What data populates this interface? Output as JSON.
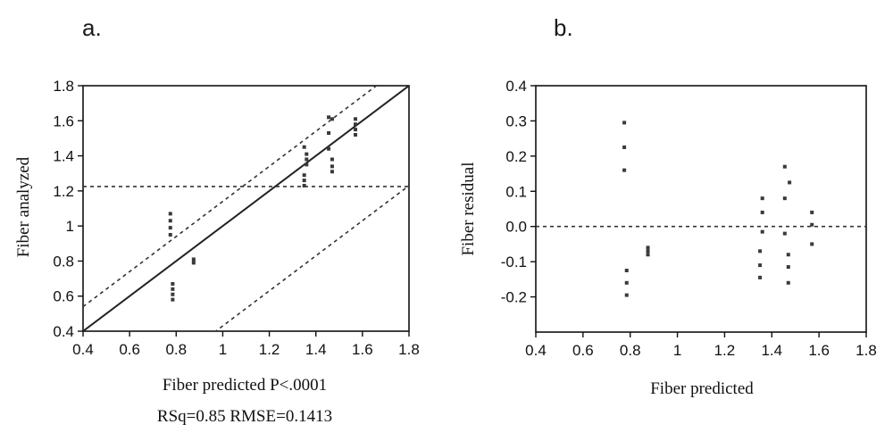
{
  "chart_data": [
    {
      "type": "scatter",
      "panel_label": "a.",
      "xlabel": "Fiber predicted P<.0001",
      "caption": "RSq=0.85 RMSE=0.1413",
      "ylabel": "Fiber analyzed",
      "xlim": [
        0.4,
        1.8
      ],
      "ylim": [
        0.4,
        1.8
      ],
      "xticks": [
        "0.4",
        "0.6",
        "0.8",
        "1",
        "1.2",
        "1.4",
        "1.6",
        "1.8"
      ],
      "yticks": [
        "0.4",
        "0.6",
        "0.8",
        "1",
        "1.2",
        "1.4",
        "1.6",
        "1.8"
      ],
      "grid": false,
      "fit_line": {
        "slope": 1,
        "intercept": 0
      },
      "confidence_lines": [
        {
          "slope": 1,
          "intercept": 0.14
        },
        {
          "slope": 1,
          "intercept": -0.57
        }
      ],
      "mean_line": {
        "y": 1.225
      },
      "series": [
        {
          "points": [
            [
              0.775,
              1.07
            ],
            [
              0.775,
              1.03
            ],
            [
              0.775,
              0.99
            ],
            [
              0.775,
              0.95
            ],
            [
              0.785,
              0.67
            ],
            [
              0.785,
              0.64
            ],
            [
              0.785,
              0.61
            ],
            [
              0.785,
              0.58
            ],
            [
              0.875,
              0.81
            ],
            [
              0.875,
              0.79
            ],
            [
              1.35,
              1.45
            ],
            [
              1.36,
              1.41
            ],
            [
              1.36,
              1.38
            ],
            [
              1.36,
              1.35
            ],
            [
              1.35,
              1.29
            ],
            [
              1.35,
              1.26
            ],
            [
              1.35,
              1.23
            ],
            [
              1.455,
              1.62
            ],
            [
              1.455,
              1.53
            ],
            [
              1.455,
              1.44
            ],
            [
              1.47,
              1.61
            ],
            [
              1.47,
              1.38
            ],
            [
              1.47,
              1.34
            ],
            [
              1.47,
              1.31
            ],
            [
              1.57,
              1.61
            ],
            [
              1.57,
              1.58
            ],
            [
              1.57,
              1.55
            ],
            [
              1.57,
              1.52
            ]
          ]
        }
      ]
    },
    {
      "type": "scatter",
      "panel_label": "b.",
      "xlabel": "Fiber predicted",
      "ylabel": "Fiber residual",
      "xlim": [
        0.4,
        1.8
      ],
      "ylim": [
        -0.3,
        0.4
      ],
      "xticks": [
        "0.4",
        "0.6",
        "0.8",
        "1",
        "1.2",
        "1.4",
        "1.6",
        "1.8"
      ],
      "yticks": [
        "-0.2",
        "-0.1",
        "0.0",
        "0.1",
        "0.2",
        "0.3",
        "0.4"
      ],
      "grid": false,
      "zero_line": {
        "y": 0.0
      },
      "series": [
        {
          "points": [
            [
              0.775,
              0.295
            ],
            [
              0.775,
              0.225
            ],
            [
              0.775,
              0.16
            ],
            [
              0.785,
              -0.125
            ],
            [
              0.785,
              -0.16
            ],
            [
              0.785,
              -0.195
            ],
            [
              0.875,
              -0.06
            ],
            [
              0.875,
              -0.07
            ],
            [
              0.875,
              -0.08
            ],
            [
              1.36,
              0.08
            ],
            [
              1.36,
              0.04
            ],
            [
              1.36,
              -0.015
            ],
            [
              1.35,
              -0.07
            ],
            [
              1.35,
              -0.11
            ],
            [
              1.35,
              -0.145
            ],
            [
              1.455,
              0.17
            ],
            [
              1.455,
              0.08
            ],
            [
              1.455,
              -0.02
            ],
            [
              1.475,
              0.125
            ],
            [
              1.47,
              -0.08
            ],
            [
              1.47,
              -0.115
            ],
            [
              1.47,
              -0.16
            ],
            [
              1.57,
              0.04
            ],
            [
              1.57,
              0.005
            ],
            [
              1.57,
              -0.05
            ]
          ]
        }
      ]
    }
  ]
}
